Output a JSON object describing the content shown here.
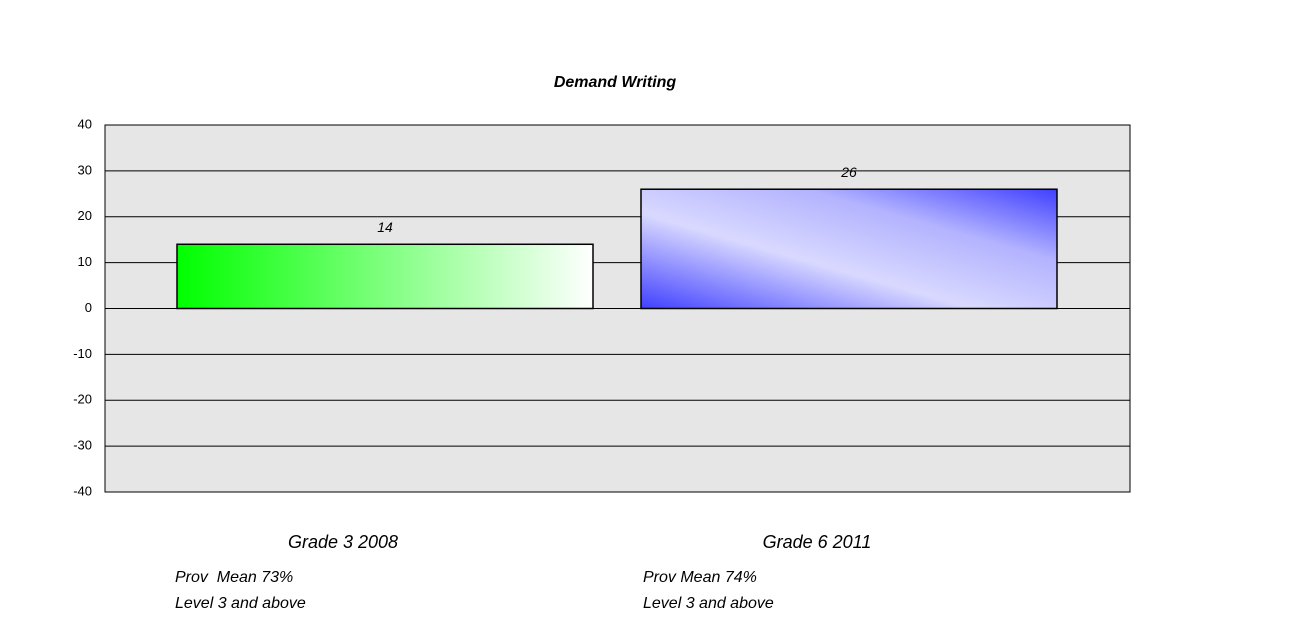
{
  "chart_data": {
    "type": "bar",
    "title": "Demand Writing",
    "categories": [
      "Grade 3 2008",
      "Grade 6 2011"
    ],
    "values": [
      14,
      26
    ],
    "colors": [
      "#00ff00",
      "#4040ff"
    ],
    "annotations": [
      [
        "Prov  Mean 73%",
        "Level 3 and above"
      ],
      [
        "Prov Mean 74%",
        "Level 3 and above"
      ]
    ],
    "ylim": [
      -40,
      40
    ],
    "yticks": [
      -40,
      -30,
      -20,
      -10,
      0,
      10,
      20,
      30,
      40
    ],
    "grid": true
  }
}
